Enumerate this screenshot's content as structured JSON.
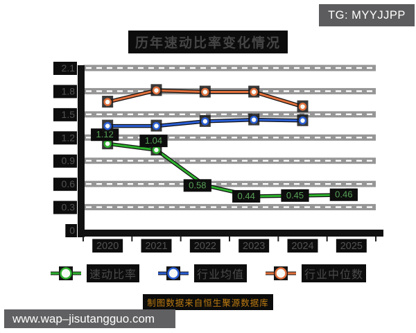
{
  "badge": {
    "label": "TG: MYYJJPP"
  },
  "watermark": {
    "url": "www.wap–jisutangguo.com"
  },
  "footnote": {
    "text": "制图数据来自恒生聚源数据库",
    "color": "#bf7d12"
  },
  "chart_data": {
    "type": "line",
    "title": "历年速动比率变化情况",
    "categories": [
      "2020",
      "2021",
      "2022",
      "2023",
      "2024",
      "2025"
    ],
    "xlabel": "",
    "ylabel": "",
    "ylim": [
      0,
      2.1
    ],
    "yticks": [
      2.1,
      1.8,
      1.5,
      1.2,
      0.9,
      0.6,
      0.3,
      0
    ],
    "grid": "horizontal-dashed-bands",
    "legend_position": "bottom",
    "series": [
      {
        "name": "速动比率",
        "color": "#2eb22e",
        "values": [
          1.12,
          1.04,
          0.58,
          0.44,
          0.45,
          0.46
        ],
        "point_labels": [
          "1.12",
          "1.04",
          "0.58",
          "0.44",
          "0.45",
          "0.46"
        ]
      },
      {
        "name": "行业均值",
        "color": "#2a5ed4",
        "values": [
          1.35,
          1.35,
          1.41,
          1.43,
          1.42,
          null
        ]
      },
      {
        "name": "行业中位数",
        "color": "#e2713d",
        "values": [
          1.66,
          1.81,
          1.79,
          1.79,
          1.6,
          null
        ]
      }
    ]
  },
  "ui_colors": {
    "axis": "#111111",
    "grid_band": "#969696",
    "grid_dash": "#ffffff",
    "ghost_box": "#0d0d0d",
    "tick_text": "#525252",
    "point_label_text": "#57a057",
    "watermark_bg": "#5c5c5e",
    "watermark_text": "#ffffff"
  }
}
